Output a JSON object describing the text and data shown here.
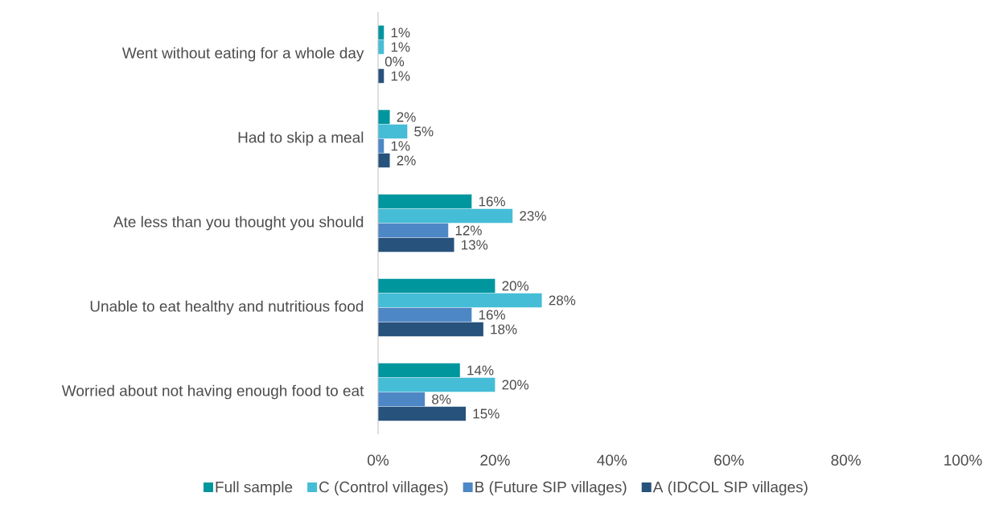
{
  "chart_data": {
    "type": "bar",
    "orientation": "horizontal",
    "categories": [
      "Went without eating for a whole day",
      "Had to skip a meal",
      "Ate less than you thought you should",
      "Unable to eat healthy and nutritious food",
      "Worried about not having enough food to eat"
    ],
    "series": [
      {
        "name": "Full sample",
        "color": "#00969e",
        "values": [
          1,
          2,
          16,
          20,
          14
        ],
        "value_labels": [
          "1%",
          "2%",
          "16%",
          "20%",
          "14%"
        ]
      },
      {
        "name": "C (Control villages)",
        "color": "#45bdd6",
        "values": [
          1,
          5,
          23,
          28,
          20
        ],
        "value_labels": [
          "1%",
          "5%",
          "23%",
          "28%",
          "20%"
        ]
      },
      {
        "name": "B (Future SIP villages)",
        "color": "#4e87c6",
        "values": [
          0,
          1,
          12,
          16,
          8
        ],
        "value_labels": [
          "0%",
          "1%",
          "12%",
          "16%",
          "8%"
        ]
      },
      {
        "name": "A (IDCOL SIP villages)",
        "color": "#27527b",
        "values": [
          1,
          2,
          13,
          18,
          15
        ],
        "value_labels": [
          "1%",
          "2%",
          "13%",
          "18%",
          "15%"
        ]
      }
    ],
    "xlim": [
      0,
      100
    ],
    "xticks": [
      {
        "value": 0,
        "label": "0%"
      },
      {
        "value": 20,
        "label": "20%"
      },
      {
        "value": 40,
        "label": "40%"
      },
      {
        "value": 60,
        "label": "60%"
      },
      {
        "value": 80,
        "label": "80%"
      },
      {
        "value": 100,
        "label": "100%"
      }
    ],
    "grid": false,
    "legend": "bottom"
  }
}
